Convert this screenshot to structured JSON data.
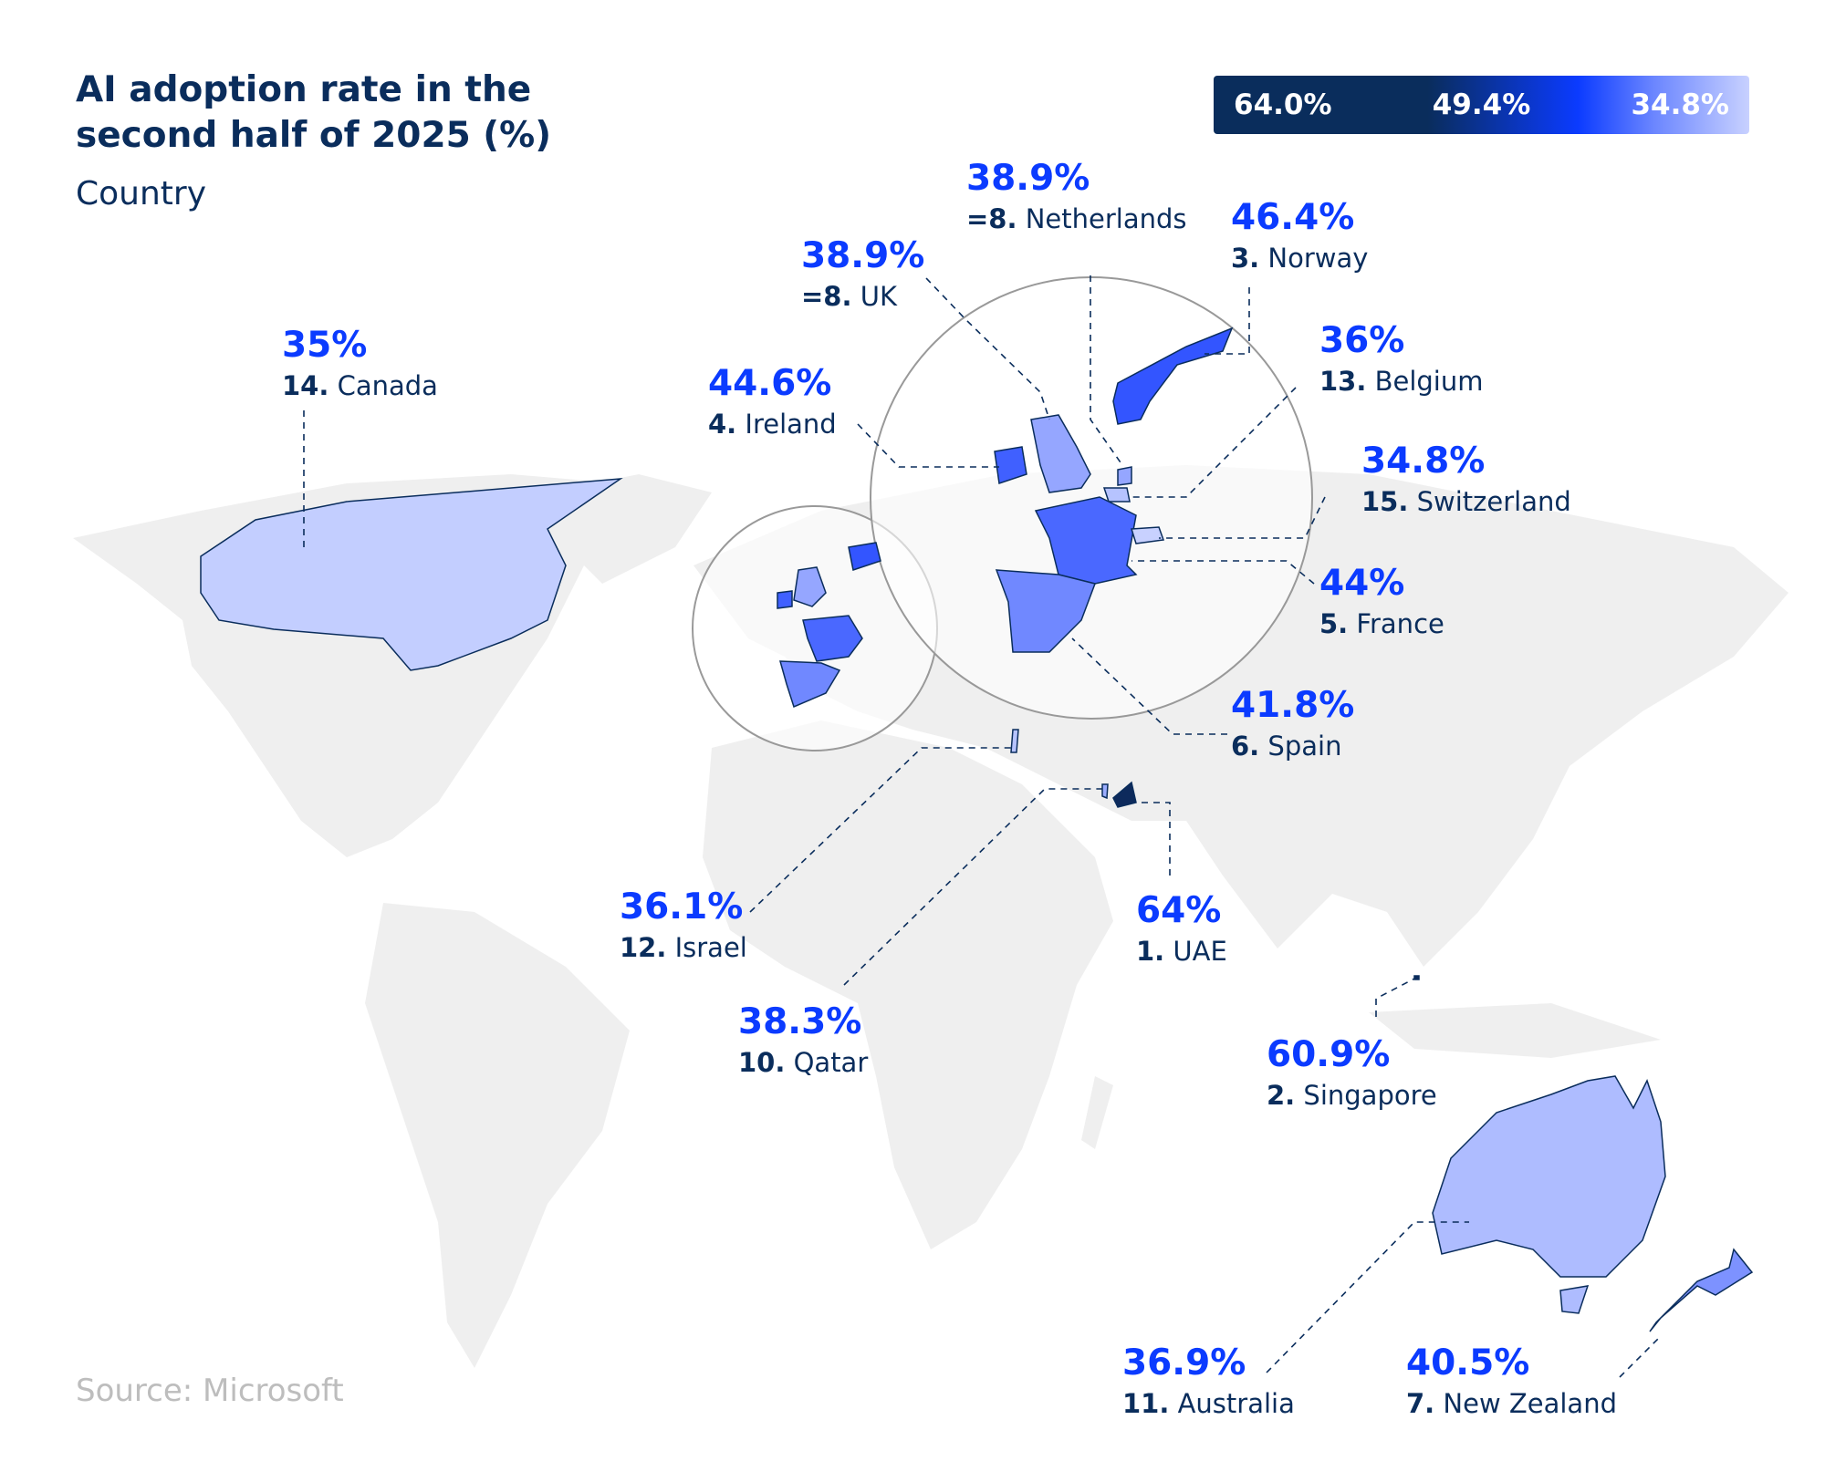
{
  "title": "AI adoption rate in the second half of 2025 (%)",
  "subtitle": "Country",
  "source": "Source: Microsoft",
  "legend": {
    "max": "64.0%",
    "mid": "49.4%",
    "min": "34.8%",
    "colors": [
      "#0a2d5c",
      "#0b3bff",
      "#c8d1ff"
    ]
  },
  "chart_data": {
    "type": "map",
    "title": "AI adoption rate in the second half of 2025 (%)",
    "color_scale": {
      "min": 34.8,
      "mid": 49.4,
      "max": 64.0
    },
    "countries": [
      {
        "rank": "1.",
        "name": "UAE",
        "value": 64,
        "label": "64%",
        "color": "#0d2a5c"
      },
      {
        "rank": "2.",
        "name": "Singapore",
        "value": 60.9,
        "label": "60.9%",
        "color": "#0d2a5c"
      },
      {
        "rank": "3.",
        "name": "Norway",
        "value": 46.4,
        "label": "46.4%",
        "color": "#3355ff"
      },
      {
        "rank": "4.",
        "name": "Ireland",
        "value": 44.6,
        "label": "44.6%",
        "color": "#4060ff"
      },
      {
        "rank": "5.",
        "name": "France",
        "value": 44,
        "label": "44%",
        "color": "#4a68ff"
      },
      {
        "rank": "6.",
        "name": "Spain",
        "value": 41.8,
        "label": "41.8%",
        "color": "#7088ff"
      },
      {
        "rank": "7.",
        "name": "New Zealand",
        "value": 40.5,
        "label": "40.5%",
        "color": "#7d92ff"
      },
      {
        "rank": "=8.",
        "name": "UK",
        "value": 38.9,
        "label": "38.9%",
        "color": "#95a6ff"
      },
      {
        "rank": "=8.",
        "name": "Netherlands",
        "value": 38.9,
        "label": "38.9%",
        "color": "#95a6ff"
      },
      {
        "rank": "10.",
        "name": "Qatar",
        "value": 38.3,
        "label": "38.3%",
        "color": "#9badff"
      },
      {
        "rank": "11.",
        "name": "Australia",
        "value": 36.9,
        "label": "36.9%",
        "color": "#aebcff"
      },
      {
        "rank": "12.",
        "name": "Israel",
        "value": 36.1,
        "label": "36.1%",
        "color": "#b6c3ff"
      },
      {
        "rank": "13.",
        "name": "Belgium",
        "value": 36,
        "label": "36%",
        "color": "#b6c3ff"
      },
      {
        "rank": "14.",
        "name": "Canada",
        "value": 35,
        "label": "35%",
        "color": "#c3ceff"
      },
      {
        "rank": "15.",
        "name": "Switzerland",
        "value": 34.8,
        "label": "34.8%",
        "color": "#c8d1ff"
      }
    ]
  }
}
